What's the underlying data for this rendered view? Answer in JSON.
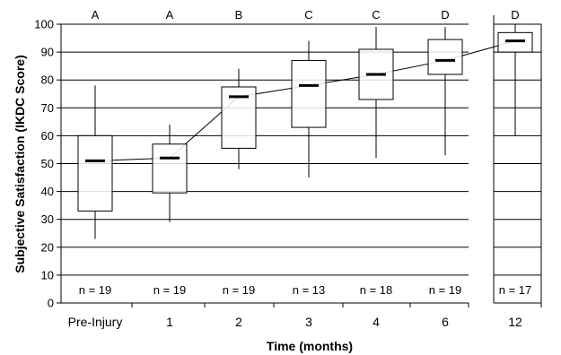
{
  "chart_data": {
    "type": "box",
    "ylabel": "Subjective Satisfaction (IKDC Score)",
    "xlabel": "Time (months)",
    "ylim": [
      0,
      100
    ],
    "yticks": [
      0,
      10,
      20,
      30,
      40,
      50,
      60,
      70,
      80,
      90,
      100
    ],
    "grid": "horizontal",
    "axis_break": "between 6 and 12",
    "categories": [
      "Pre-Injury",
      "1",
      "2",
      "3",
      "4",
      "6",
      "12"
    ],
    "group_labels": [
      "A",
      "A",
      "B",
      "C",
      "C",
      "D",
      "D"
    ],
    "n_labels": [
      "n = 19",
      "n = 19",
      "n = 19",
      "n = 13",
      "n = 18",
      "n = 19",
      "n = 17"
    ],
    "boxes": [
      {
        "min": 23,
        "q1": 33,
        "median": 51,
        "q3": 60,
        "max": 78
      },
      {
        "min": 29,
        "q1": 39.5,
        "median": 52,
        "q3": 57,
        "max": 64
      },
      {
        "min": 48,
        "q1": 55.5,
        "median": 74,
        "q3": 77.5,
        "max": 84
      },
      {
        "min": 45,
        "q1": 63,
        "median": 78,
        "q3": 87,
        "max": 94
      },
      {
        "min": 52,
        "q1": 73,
        "median": 82,
        "q3": 91,
        "max": 99
      },
      {
        "min": 53,
        "q1": 82,
        "median": 87,
        "q3": 94.5,
        "max": 99
      },
      {
        "min": 60,
        "q1": 90,
        "median": 94,
        "q3": 97,
        "max": 100
      }
    ],
    "trend_line": [
      51,
      52,
      74,
      78,
      82,
      87,
      94
    ]
  }
}
